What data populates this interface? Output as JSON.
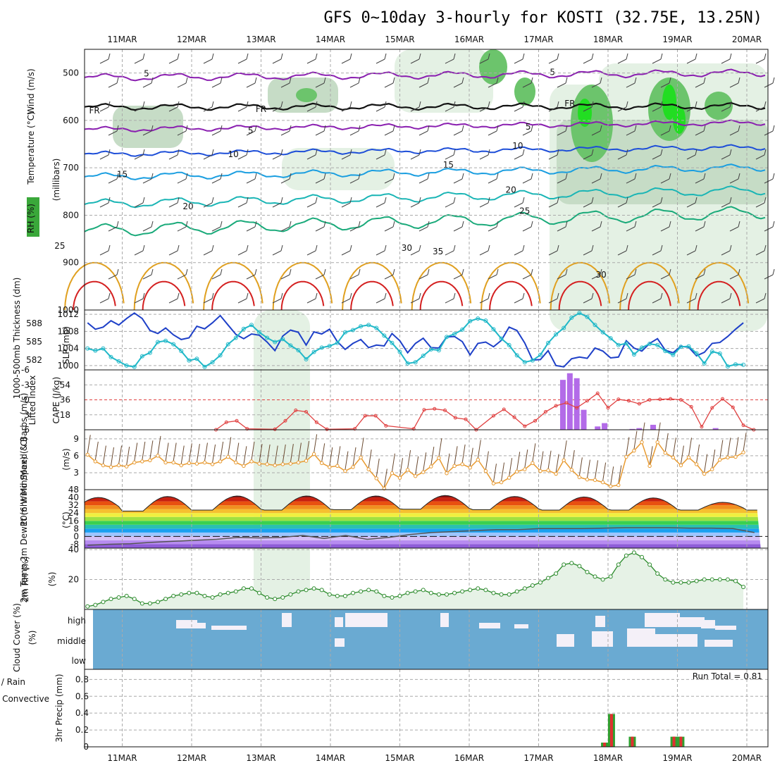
{
  "title": "GFS 0~10day 3-hourly for KOSTI (32.75E, 13.25N)",
  "colors": {
    "purple": "#8a1fb0",
    "black": "#111111",
    "blue10": "#1d4ed8",
    "lblue15": "#1a9ee0",
    "teal20": "#1ab5b5",
    "green25": "#1aaa7a",
    "orange30": "#e0a020",
    "orange35": "#e07a20",
    "red": "#d42020",
    "cyan": "#20b8c8",
    "slp": "#1e40c8",
    "cape": "#b36be8",
    "li": "#e04040",
    "wind": "#e89a30",
    "barb": "#6b4a30",
    "rh": "#2a8a2a",
    "cloud": "#6aaad2",
    "rain": "#e03030",
    "precip": "#30a030"
  },
  "chart_data": [
    {
      "type": "contour",
      "name": "upper-air time-height section",
      "x_ticks": [
        "11MAR",
        "12MAR",
        "13MAR",
        "14MAR",
        "15MAR",
        "16MAR",
        "17MAR",
        "18MAR",
        "19MAR",
        "20MAR"
      ],
      "y_ticks": [
        "500",
        "600",
        "700",
        "800",
        "900",
        "1000"
      ],
      "ylim": [
        450,
        1000
      ],
      "ylabel": "(millibars)",
      "ylabel_parts": [
        "RH (%)",
        "Temperature (°C)",
        "Wind (m/s)"
      ],
      "contour_labels": [
        {
          "text": "5",
          "mb": 500,
          "t": 1.35,
          "color": "purple"
        },
        {
          "text": "5",
          "mb": 497,
          "t": 7.2,
          "color": "purple"
        },
        {
          "text": "FR",
          "mb": 578,
          "t": 0.6,
          "color": "black"
        },
        {
          "text": "FR",
          "mb": 575,
          "t": 3.0,
          "color": "black"
        },
        {
          "text": "FR",
          "mb": 563,
          "t": 7.45,
          "color": "black"
        },
        {
          "text": "5",
          "mb": 620,
          "t": 2.85,
          "color": "purple"
        },
        {
          "text": "5",
          "mb": 612,
          "t": 6.85,
          "color": "purple"
        },
        {
          "text": "10",
          "mb": 670,
          "t": 2.6,
          "color": "blue10"
        },
        {
          "text": "10",
          "mb": 652,
          "t": 6.7,
          "color": "blue10"
        },
        {
          "text": "15",
          "mb": 712,
          "t": 1.0,
          "color": "lblue15"
        },
        {
          "text": "15",
          "mb": 692,
          "t": 5.7,
          "color": "lblue15"
        },
        {
          "text": "20",
          "mb": 780,
          "t": 1.95,
          "color": "teal20"
        },
        {
          "text": "20",
          "mb": 745,
          "t": 6.6,
          "color": "teal20"
        },
        {
          "text": "25",
          "mb": 863,
          "t": 0.1,
          "color": "green25"
        },
        {
          "text": "25",
          "mb": 790,
          "t": 6.8,
          "color": "green25"
        },
        {
          "text": "30",
          "mb": 868,
          "t": 5.1,
          "color": "orange30"
        },
        {
          "text": "35",
          "mb": 875,
          "t": 5.55,
          "color": "orange35"
        },
        {
          "text": "30",
          "mb": 924,
          "t": 7.9,
          "color": "gray"
        }
      ]
    },
    {
      "type": "line",
      "name": "SLP and 1000-500mb thickness",
      "ylabel_left": "1000-500mb Thickness (dm)",
      "ylabel_right": "SLP (mb)",
      "left_ticks": [
        "582",
        "585",
        "588"
      ],
      "right_ticks": [
        "1000",
        "1004",
        "1008",
        "1012"
      ],
      "ylim": [
        999,
        1013
      ],
      "series": [
        {
          "name": "SLP",
          "unit": "mb",
          "values": [
            1010,
            1008.5,
            1009,
            1010.5,
            1009.5,
            1011,
            1012.3,
            1011,
            1008.2,
            1007.5,
            1008.8,
            1007.2,
            1006.1,
            1006.5,
            1009.2,
            1008.6,
            1010,
            1011.7,
            1009.5,
            1007.3,
            1006.3,
            1007.4,
            1007.1,
            1005.5,
            1003.5,
            1006.9,
            1008.3,
            1007.8,
            1004.8,
            1007.9,
            1007.4,
            1008.5,
            1005.6,
            1003.8,
            1005.2,
            1006.1,
            1004.2,
            1004.8,
            1004.6,
            1007.5,
            1005.8,
            1003,
            1005.2,
            1006.4,
            1004.2,
            1004.1,
            1006.7,
            1006.8,
            1005.6,
            1002.5,
            1005.2,
            1005.5,
            1004.4,
            1005.9,
            1009,
            1008.2,
            1005.3,
            1001.3,
            1001.4,
            1003.5,
            1000,
            999.7,
            1001.6,
            1002,
            1001.7,
            1004.1,
            1003.4,
            1001.8,
            1002,
            1005.8,
            1004.1,
            1003.4,
            1005.2,
            1006.3,
            1003.6,
            1003,
            1004.5,
            1004.3,
            1002.3,
            1003.1,
            1005.2,
            1005.4,
            1006.8,
            1008.5,
            1010
          ]
        },
        {
          "name": "1000-500mb thickness",
          "unit": "slp-scale",
          "values": [
            1004,
            1003.5,
            1004,
            1002,
            1001,
            1000,
            999.7,
            1002.2,
            1003,
            1005.5,
            1005.8,
            1005,
            1003.4,
            1001.2,
            1001.6,
            999.7,
            1000.8,
            1002.4,
            1005,
            1006.5,
            1008.6,
            1009.5,
            1007.8,
            1006.5,
            1005.5,
            1006.2,
            1004.7,
            1003.6,
            1001.5,
            1003.2,
            1004.2,
            1004.6,
            1005.3,
            1007.8,
            1008.3,
            1009.2,
            1009.5,
            1008.8,
            1007,
            1005.3,
            1003.2,
            1000.5,
            1000.8,
            1002.3,
            1003.8,
            1003.6,
            1006.7,
            1007.4,
            1008.4,
            1010.4,
            1011,
            1010.5,
            1008.5,
            1006.3,
            1004.8,
            1002.4,
            1000.8,
            1001.2,
            1002.5,
            1005.3,
            1007.3,
            1008.8,
            1011.2,
            1012.3,
            1011.4,
            1009.5,
            1007.8,
            1006.4,
            1004.8,
            1005.2,
            1002.6,
            1004.2,
            1005.1,
            1004.8,
            1003.4,
            1002.5,
            1004.4,
            1004.5,
            1002.9,
            1000.5,
            1003.3,
            1002.8,
            999.8,
            1000.3,
            1000.2
          ]
        }
      ]
    },
    {
      "type": "bar+line",
      "name": "CAPE and Lifted Index",
      "ylabel_left": "Lifted Index",
      "ylabel_right": "CAPE (J/kg)",
      "li_ticks": [
        "-6",
        "-3",
        "0",
        "3",
        "6"
      ],
      "cape_ticks": [
        "18",
        "36",
        "54"
      ],
      "cape_bars": [
        {
          "t": 7.35,
          "v": 60
        },
        {
          "t": 7.45,
          "v": 68
        },
        {
          "t": 7.55,
          "v": 62
        },
        {
          "t": 7.65,
          "v": 24
        },
        {
          "t": 7.85,
          "v": 4
        },
        {
          "t": 7.95,
          "v": 8
        },
        {
          "t": 8.35,
          "v": 1
        },
        {
          "t": 8.45,
          "v": 2
        },
        {
          "t": 8.65,
          "v": 6
        },
        {
          "t": 9.55,
          "v": 2
        }
      ],
      "li_line": [
        {
          "t": 2.35,
          "v": 6
        },
        {
          "t": 2.5,
          "v": 4.5
        },
        {
          "t": 2.65,
          "v": 4.2
        },
        {
          "t": 2.8,
          "v": 5.8
        },
        {
          "t": 3.2,
          "v": 5.9
        },
        {
          "t": 3.35,
          "v": 4.2
        },
        {
          "t": 3.5,
          "v": 2.1
        },
        {
          "t": 3.65,
          "v": 2.4
        },
        {
          "t": 3.8,
          "v": 4.5
        },
        {
          "t": 3.95,
          "v": 5.9
        },
        {
          "t": 4.35,
          "v": 5.8
        },
        {
          "t": 4.5,
          "v": 3.2
        },
        {
          "t": 4.65,
          "v": 3.2
        },
        {
          "t": 4.8,
          "v": 5.2
        },
        {
          "t": 5.2,
          "v": 5.8
        },
        {
          "t": 5.35,
          "v": 2
        },
        {
          "t": 5.5,
          "v": 1.8
        },
        {
          "t": 5.65,
          "v": 2.1
        },
        {
          "t": 5.8,
          "v": 3.6
        },
        {
          "t": 5.95,
          "v": 3.9
        },
        {
          "t": 6.1,
          "v": 6
        },
        {
          "t": 6.35,
          "v": 3.2
        },
        {
          "t": 6.5,
          "v": 1.9
        },
        {
          "t": 6.65,
          "v": 3.5
        },
        {
          "t": 6.8,
          "v": 5.3
        },
        {
          "t": 6.95,
          "v": 4.2
        },
        {
          "t": 7.1,
          "v": 2.4
        },
        {
          "t": 7.25,
          "v": 1.2
        },
        {
          "t": 7.4,
          "v": 0.6
        },
        {
          "t": 7.55,
          "v": 1.6
        },
        {
          "t": 7.7,
          "v": 0.2
        },
        {
          "t": 7.85,
          "v": -1.3
        },
        {
          "t": 8.0,
          "v": 1.6
        },
        {
          "t": 8.15,
          "v": -0.1
        },
        {
          "t": 8.3,
          "v": 0.2
        },
        {
          "t": 8.45,
          "v": 0.8
        },
        {
          "t": 8.6,
          "v": 0
        },
        {
          "t": 8.75,
          "v": -0.1
        },
        {
          "t": 8.9,
          "v": -0.2
        },
        {
          "t": 9.05,
          "v": 0
        },
        {
          "t": 9.2,
          "v": 1.4
        },
        {
          "t": 9.35,
          "v": 5.4
        },
        {
          "t": 9.5,
          "v": 1.6
        },
        {
          "t": 9.65,
          "v": -0.2
        },
        {
          "t": 9.8,
          "v": 1.5
        },
        {
          "t": 9.95,
          "v": 5.1
        },
        {
          "t": 10.1,
          "v": 6
        }
      ]
    },
    {
      "type": "line",
      "name": "10m Wind Speed & Barbs",
      "ylabel": "10m Wind Speed & Barbs (m/s)",
      "y_ticks": [
        "3",
        "6",
        "9"
      ],
      "ylim": [
        0,
        10.6
      ],
      "values": [
        6.2,
        5,
        4.3,
        4,
        4.3,
        4.1,
        4.8,
        5,
        5.2,
        6,
        4.8,
        4.8,
        4.3,
        4.7,
        4.6,
        4.8,
        4.5,
        5,
        5.8,
        4.8,
        4.2,
        5,
        4.6,
        4.5,
        4.3,
        4.5,
        4.6,
        4.8,
        5.1,
        6.3,
        4.7,
        4,
        4.2,
        3.3,
        4,
        5.7,
        3.6,
        2,
        0.2,
        2.9,
        2.1,
        3.5,
        2.4,
        3.1,
        4.1,
        5.6,
        2.9,
        4.2,
        4.5,
        3.9,
        5.3,
        3.3,
        1.1,
        1.3,
        2.1,
        3.2,
        3.6,
        4.7,
        3.3,
        3.4,
        2.8,
        5.2,
        3.5,
        2.2,
        1.8,
        1.7,
        1.3,
        0.6,
        0.8,
        5.8,
        6.9,
        8.4,
        4.2,
        8.4,
        6.5,
        5.7,
        4.3,
        5.7,
        4.5,
        2.8,
        3.6,
        5.3,
        5.7,
        5.8,
        6.6
      ]
    },
    {
      "type": "area",
      "name": "2m Temp and DewPt",
      "ylabel": "2m Temp 2m DewPt (6hr Min/Max) (°C)",
      "y_ticks": [
        "-8",
        "0",
        "8",
        "16",
        "24",
        "32",
        "40",
        "48"
      ],
      "ylim": [
        -12,
        48
      ],
      "temp_day_max": [
        40,
        41,
        41.5,
        41.5,
        41.5,
        42,
        41,
        40.5,
        39.5,
        35
      ],
      "temp_night_min": [
        27,
        26,
        27,
        27,
        27.5,
        28,
        27.5,
        27,
        27,
        27
      ],
      "dewpoint": [
        -9,
        -8,
        -7.5,
        -6,
        -5,
        -4,
        -3,
        -1,
        -1.5,
        -1,
        1,
        -2,
        1,
        -3,
        -1,
        2,
        4,
        5,
        6,
        7,
        7,
        8,
        8,
        8,
        8.5,
        9,
        9,
        9,
        8.5,
        8.5,
        8,
        4
      ]
    },
    {
      "type": "area",
      "name": "2m RH",
      "ylabel": "2m RH (%)",
      "y_ticks": [
        "20",
        "40"
      ],
      "ylim": [
        0,
        41
      ],
      "values": [
        2,
        3,
        5,
        7,
        8,
        9,
        7,
        4,
        4,
        5,
        7,
        9,
        10,
        11,
        11,
        9,
        8,
        10,
        11,
        12,
        14,
        14,
        11,
        8,
        7,
        8,
        10,
        12,
        13,
        14,
        13,
        10,
        9,
        9,
        11,
        12,
        13,
        12,
        9,
        8,
        9,
        11,
        12,
        13,
        11,
        10,
        10,
        11,
        12,
        13,
        14,
        13,
        11,
        10,
        10,
        12,
        14,
        16,
        18,
        21,
        24,
        30,
        31,
        29,
        25,
        22,
        20,
        22,
        30,
        36,
        38,
        35,
        30,
        24,
        20,
        18,
        18,
        18,
        19,
        20,
        20,
        20,
        20,
        19,
        15
      ]
    },
    {
      "type": "bar",
      "name": "Cloud Cover",
      "ylabel": "Cloud Cover (%)",
      "levels": [
        "high",
        "middle",
        "low"
      ]
    },
    {
      "type": "bar",
      "name": "3hr Precip",
      "ylabel": "3hr Precip (mm)",
      "ylabel_parts": [
        "Total / Rain",
        "Convective"
      ],
      "y_ticks": [
        "0",
        "0.2",
        "0.4",
        "0.6",
        "0.8"
      ],
      "ylim": [
        0,
        0.92
      ],
      "run_total_label": "Run Total = 0.81",
      "bars": [
        {
          "t": 7.95,
          "v": 0.05
        },
        {
          "t": 8.05,
          "v": 0.39
        },
        {
          "t": 8.35,
          "v": 0.12
        },
        {
          "t": 8.95,
          "v": 0.12
        },
        {
          "t": 9.05,
          "v": 0.12
        }
      ]
    }
  ]
}
